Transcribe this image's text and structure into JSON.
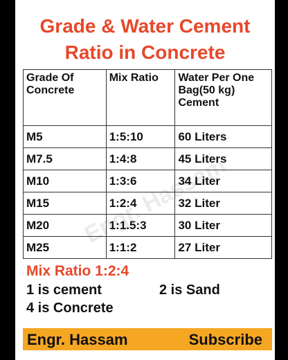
{
  "header": {
    "title_lines": [
      "Grade & Water Cement",
      "Ratio in Concrete"
    ]
  },
  "table": {
    "header": [
      "Grade Of Concrete",
      "Mix Ratio",
      "Water Per One Bag(50 kg) Cement"
    ],
    "rows": [
      [
        "M5",
        "1:5:10",
        "60 Liters"
      ],
      [
        "M7.5",
        "1:4:8",
        "45 Liters"
      ],
      [
        "M10",
        "1:3:6",
        "34 Liter"
      ],
      [
        "M15",
        "1:2:4",
        "32 Liter"
      ],
      [
        "M20",
        "1:1.5:3",
        "30 Liter"
      ],
      [
        "M25",
        "1:1:2",
        "27 Liter"
      ]
    ]
  },
  "notes": {
    "heading": "Mix Ratio 1:2:4",
    "items": [
      "1 is cement",
      "2 is Sand",
      "4 is Concrete"
    ]
  },
  "watermark": "Engr. Hassam",
  "footer": {
    "left": "Engr. Hassam",
    "right": "Subscribe"
  }
}
